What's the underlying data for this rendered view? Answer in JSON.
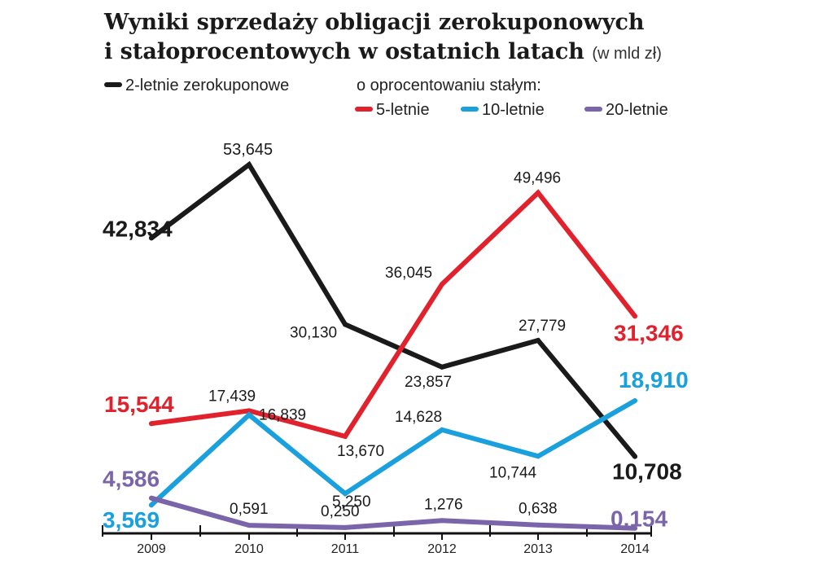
{
  "title": {
    "line1": "Wyniki sprzedaży obligacji zerokuponowych",
    "line2": "i stałoprocentowych w ostatnich latach",
    "unit": "(w mld zł)"
  },
  "legend": {
    "group_label": "o oprocentowaniu stałym:"
  },
  "colors": {
    "zero2": "#1a1a1a",
    "fixed5": "#e1222d",
    "fixed10": "#1aa0dc",
    "fixed20": "#7b65aa"
  },
  "chart_data": {
    "type": "line",
    "x": [
      "2009",
      "2010",
      "2011",
      "2012",
      "2013",
      "2014"
    ],
    "ylim": [
      0,
      56
    ],
    "grid": false,
    "legend_position": "top",
    "series": [
      {
        "name": "2-letnie zerokuponowe",
        "key": "zero2",
        "values": [
          42.834,
          53.645,
          30.13,
          23.857,
          27.779,
          10.708
        ],
        "labels": [
          "42,834",
          "53,645",
          "30,130",
          "23,857",
          "27,779",
          "10,708"
        ]
      },
      {
        "name": "5-letnie",
        "key": "fixed5",
        "values": [
          15.544,
          17.439,
          13.67,
          36.045,
          49.496,
          31.346
        ],
        "labels": [
          "15,544",
          "17,439",
          "13,670",
          "36,045",
          "49,496",
          "31,346"
        ]
      },
      {
        "name": "10-letnie",
        "key": "fixed10",
        "values": [
          3.569,
          16.839,
          5.25,
          14.628,
          10.744,
          18.91
        ],
        "labels": [
          "3,569",
          "16,839",
          "5,250",
          "14,628",
          "10,744",
          "18,910"
        ]
      },
      {
        "name": "20-letnie",
        "key": "fixed20",
        "values": [
          4.586,
          0.591,
          0.25,
          1.276,
          0.638,
          0.154
        ],
        "labels": [
          "4,586",
          "0,591",
          "0,250",
          "1,276",
          "0,638",
          "0,154"
        ]
      }
    ]
  }
}
